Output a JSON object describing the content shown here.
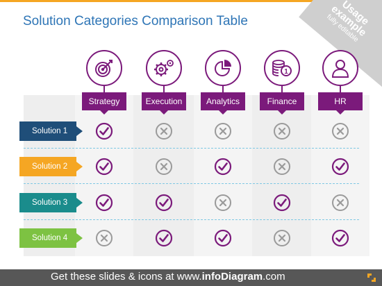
{
  "title": "Solution Categories Comparison Table",
  "ribbon": {
    "line1": "Usage",
    "line2": "example",
    "line3": "fully editable"
  },
  "categories": [
    {
      "label": "Strategy",
      "icon": "target-icon"
    },
    {
      "label": "Execution",
      "icon": "gears-icon"
    },
    {
      "label": "Analytics",
      "icon": "pie-chart-icon"
    },
    {
      "label": "Finance",
      "icon": "coins-icon"
    },
    {
      "label": "HR",
      "icon": "person-icon"
    }
  ],
  "solutions": [
    {
      "label": "Solution 1",
      "color": "#1f4e79",
      "marks": [
        "check",
        "cross",
        "cross",
        "cross",
        "cross"
      ]
    },
    {
      "label": "Solution 2",
      "color": "#f5a623",
      "marks": [
        "check",
        "cross",
        "check",
        "cross",
        "check"
      ]
    },
    {
      "label": "Solution 3",
      "color": "#1a8c8c",
      "marks": [
        "check",
        "check",
        "cross",
        "check",
        "cross"
      ]
    },
    {
      "label": "Solution 4",
      "color": "#7dc242",
      "marks": [
        "cross",
        "check",
        "check",
        "cross",
        "check"
      ]
    }
  ],
  "footer": {
    "prefix": "Get these slides & icons at www.",
    "brand": "infoDiagram",
    "suffix": ".com"
  },
  "colors": {
    "accent": "#7b1a7b",
    "check": "#7b1a7b",
    "cross": "#9a9a9a"
  }
}
